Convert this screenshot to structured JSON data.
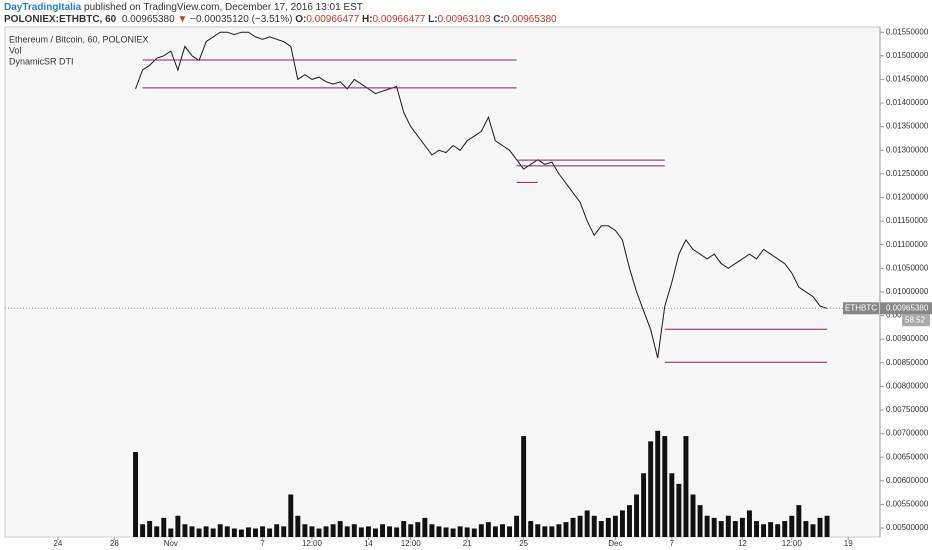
{
  "header": {
    "author": "DayTradingItalia",
    "published": "published on TradingView.com, December 17, 2016 13:01 EST",
    "symbol": "POLONIEX:ETHBTC, 60",
    "last": "0.00965380",
    "arrow": "▼",
    "change": "−0.00035120 (−3.51%)",
    "open_label": "O:",
    "open": "0.00966477",
    "high_label": "H:",
    "high": "0.00966477",
    "low_label": "L:",
    "low": "0.00963103",
    "close_label": "C:",
    "close": "0.00965380"
  },
  "chart_data": {
    "type": "line",
    "categories": [
      null,
      null,
      null,
      null,
      null,
      null,
      null,
      "24",
      null,
      null,
      null,
      null,
      null,
      null,
      null,
      "28",
      null,
      null,
      null,
      null,
      null,
      null,
      null,
      "Nov",
      null,
      null,
      null,
      null,
      null,
      null,
      null,
      null,
      null,
      null,
      null,
      null,
      "7",
      null,
      null,
      null,
      null,
      null,
      null,
      "12:00",
      null,
      null,
      null,
      null,
      null,
      null,
      null,
      "14",
      null,
      null,
      null,
      null,
      null,
      "12:00",
      null,
      null,
      null,
      null,
      null,
      null,
      null,
      "21",
      null,
      null,
      null,
      null,
      null,
      null,
      null,
      "25",
      null,
      null,
      null,
      null,
      null,
      null,
      null,
      null,
      null,
      null,
      null,
      null,
      "Dec",
      null,
      null,
      null,
      null,
      null,
      null,
      null,
      "7",
      null,
      null,
      null,
      null,
      null,
      null,
      null,
      null,
      null,
      "12",
      null,
      null,
      null,
      null,
      null,
      null,
      "12:00",
      null,
      null,
      null,
      null,
      null,
      null,
      null,
      "19",
      null,
      null,
      null,
      null
    ],
    "series": [
      {
        "name": "Ethereum / Bitcoin, 60, POLONIEX",
        "color": "#1a1a1a",
        "values": [
          null,
          null,
          null,
          null,
          null,
          null,
          null,
          null,
          null,
          null,
          null,
          null,
          null,
          null,
          null,
          null,
          null,
          null,
          0.0143,
          0.0147,
          0.0148,
          0.01495,
          0.015,
          0.0151,
          0.0147,
          0.0152,
          0.015,
          0.0149,
          0.0153,
          0.0154,
          0.0155,
          0.0155,
          0.01545,
          0.0155,
          0.0155,
          0.0154,
          0.01535,
          0.0154,
          0.01535,
          0.0153,
          0.0152,
          0.0145,
          0.0146,
          0.0145,
          0.01455,
          0.01445,
          0.0144,
          0.01445,
          0.0143,
          0.0145,
          0.0144,
          0.0143,
          0.0142,
          0.01425,
          0.0143,
          0.01435,
          0.0138,
          0.0135,
          0.0133,
          0.0131,
          0.0129,
          0.013,
          0.01295,
          0.0131,
          0.013,
          0.0132,
          0.0133,
          0.0134,
          0.0137,
          0.0132,
          0.0131,
          0.013,
          0.0128,
          0.0126,
          0.0127,
          0.0128,
          0.0127,
          0.01275,
          0.0125,
          0.0123,
          0.0121,
          0.0119,
          0.0115,
          0.0112,
          0.0114,
          0.0114,
          0.0113,
          0.0111,
          0.0105,
          0.01,
          0.0096,
          0.0092,
          0.0086,
          0.0097,
          0.0102,
          0.0108,
          0.0111,
          0.0109,
          0.0108,
          0.0107,
          0.0108,
          0.0106,
          0.0105,
          0.0106,
          0.0107,
          0.0108,
          0.0107,
          0.0109,
          0.0108,
          0.0107,
          0.0106,
          0.0104,
          0.0101,
          0.01,
          0.0099,
          0.0097,
          0.0096538,
          null,
          null,
          null,
          null,
          null,
          null,
          null
        ]
      },
      {
        "name": "Vol",
        "color": "#111111",
        "axis": "y2",
        "values": [
          null,
          null,
          null,
          null,
          null,
          null,
          null,
          null,
          null,
          null,
          null,
          null,
          null,
          null,
          null,
          null,
          null,
          null,
          80,
          12,
          15,
          10,
          18,
          8,
          20,
          12,
          10,
          8,
          10,
          8,
          12,
          10,
          8,
          7,
          9,
          8,
          10,
          8,
          12,
          10,
          40,
          20,
          12,
          10,
          8,
          10,
          12,
          15,
          10,
          12,
          9,
          10,
          8,
          12,
          10,
          9,
          15,
          12,
          14,
          18,
          12,
          10,
          9,
          8,
          10,
          9,
          8,
          12,
          14,
          10,
          12,
          10,
          20,
          95,
          15,
          12,
          10,
          10,
          12,
          14,
          18,
          20,
          25,
          20,
          15,
          18,
          20,
          25,
          30,
          40,
          60,
          90,
          100,
          95,
          60,
          50,
          95,
          40,
          30,
          20,
          18,
          15,
          20,
          15,
          18,
          25,
          15,
          12,
          14,
          12,
          15,
          20,
          30,
          15,
          12,
          18,
          20,
          null,
          null,
          null,
          null,
          null,
          null,
          null
        ]
      }
    ],
    "levels": {
      "name": "DynamicSR DTI",
      "color": "#7d2461",
      "lines": [
        {
          "value": 0.01491,
          "start": 19,
          "end": 72
        },
        {
          "value": 0.01432,
          "start": 19,
          "end": 72
        },
        {
          "value": 0.01279,
          "start": 72,
          "end": 93
        },
        {
          "value": 0.01267,
          "start": 72,
          "end": 93
        },
        {
          "value": 0.01232,
          "start": 72,
          "end": 75
        },
        {
          "value": 0.00921,
          "start": 93,
          "end": 116
        },
        {
          "value": 0.00851,
          "start": 93,
          "end": 116
        }
      ]
    },
    "tag": "ETHBTC",
    "countdown": "58.52",
    "ylim": [
      0.00481,
      0.01561
    ],
    "y2lim": [
      0,
      480
    ],
    "yticks": [
      {
        "value": 0.0155,
        "label": "0.01550000"
      },
      {
        "value": 0.015,
        "label": "0.01500000"
      },
      {
        "value": 0.0145,
        "label": "0.01450000"
      },
      {
        "value": 0.014,
        "label": "0.01400000"
      },
      {
        "value": 0.0135,
        "label": "0.01350000"
      },
      {
        "value": 0.013,
        "label": "0.01300000"
      },
      {
        "value": 0.0125,
        "label": "0.01250000"
      },
      {
        "value": 0.012,
        "label": "0.01200000"
      },
      {
        "value": 0.0115,
        "label": "0.01150000"
      },
      {
        "value": 0.011,
        "label": "0.01100000"
      },
      {
        "value": 0.0105,
        "label": "0.01050000"
      },
      {
        "value": 0.01,
        "label": "0.01000000"
      },
      {
        "value": 0.0095,
        "label": "0.00950000"
      },
      {
        "value": 0.009,
        "label": "0.00900000"
      },
      {
        "value": 0.0085,
        "label": "0.00850000"
      },
      {
        "value": 0.008,
        "label": "0.00800000"
      },
      {
        "value": 0.0075,
        "label": "0.00750000"
      },
      {
        "value": 0.007,
        "label": "0.00700000"
      },
      {
        "value": 0.0065,
        "label": "0.00650000"
      },
      {
        "value": 0.006,
        "label": "0.00600000"
      },
      {
        "value": 0.0055,
        "label": "0.00550000"
      },
      {
        "value": 0.005,
        "label": "0.00500000"
      }
    ],
    "grid": false
  }
}
